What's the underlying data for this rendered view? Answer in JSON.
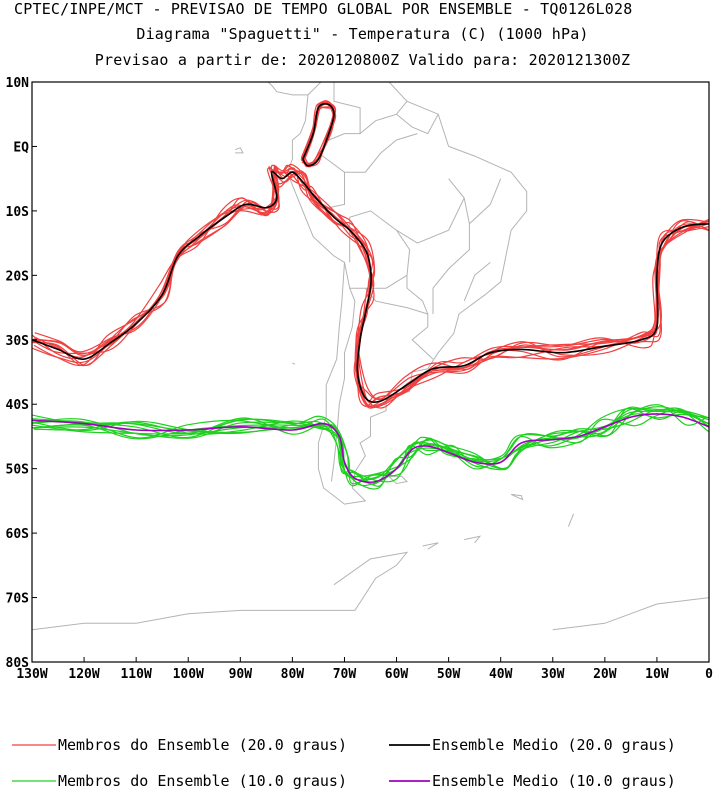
{
  "title": {
    "line1": "CPTEC/INPE/MCT - PREVISAO DE TEMPO GLOBAL POR ENSEMBLE - TQ0126L028",
    "line2": "Diagrama \"Spaguetti\" - Temperatura (C) (1000 hPa)",
    "line3": "Previsao a partir de: 2020120800Z  Valido para: 2020121300Z"
  },
  "axes": {
    "lat_labels": [
      "10N",
      "EQ",
      "10S",
      "20S",
      "30S",
      "40S",
      "50S",
      "60S",
      "70S",
      "80S"
    ],
    "lat_values": [
      10,
      0,
      -10,
      -20,
      -30,
      -40,
      -50,
      -60,
      -70,
      -80
    ],
    "lon_labels": [
      "130W",
      "120W",
      "110W",
      "100W",
      "90W",
      "80W",
      "70W",
      "60W",
      "50W",
      "40W",
      "30W",
      "20W",
      "10W",
      "0"
    ],
    "lon_values": [
      -130,
      -120,
      -110,
      -100,
      -90,
      -80,
      -70,
      -60,
      -50,
      -40,
      -30,
      -20,
      -10,
      0
    ],
    "lon_range": [
      -130,
      0
    ],
    "lat_range": [
      -80,
      10
    ]
  },
  "legend": [
    {
      "label": "Membros do Ensemble (20.0 graus)",
      "color": "#f04040"
    },
    {
      "label": "Ensemble Medio (20.0 graus)",
      "color": "#000000"
    },
    {
      "label": "Membros do Ensemble (10.0 graus)",
      "color": "#20d020"
    },
    {
      "label": "Ensemble Medio (10.0 graus)",
      "color": "#a000c0"
    }
  ],
  "contours": {
    "t20_mean": [
      [
        -130,
        -30
      ],
      [
        -125,
        -31.5
      ],
      [
        -120,
        -33
      ],
      [
        -115,
        -30.5
      ],
      [
        -110,
        -27.5
      ],
      [
        -105,
        -23
      ],
      [
        -102,
        -17
      ],
      [
        -98,
        -14
      ],
      [
        -93,
        -11
      ],
      [
        -89,
        -9
      ],
      [
        -85,
        -9.5
      ],
      [
        -83,
        -8
      ],
      [
        -84,
        -4
      ],
      [
        -82,
        -5
      ],
      [
        -80,
        -4
      ],
      [
        -78,
        -5.5
      ],
      [
        -76,
        -7.5
      ],
      [
        -72,
        -11
      ],
      [
        -69,
        -13
      ],
      [
        -66,
        -16
      ],
      [
        -65,
        -19
      ],
      [
        -65,
        -22
      ],
      [
        -66,
        -26
      ],
      [
        -67,
        -30
      ],
      [
        -67.5,
        -35
      ],
      [
        -66,
        -39
      ],
      [
        -63,
        -39.5
      ],
      [
        -58,
        -37
      ],
      [
        -53,
        -34.5
      ],
      [
        -47,
        -34
      ],
      [
        -42,
        -32
      ],
      [
        -36,
        -31.5
      ],
      [
        -28,
        -32
      ],
      [
        -20,
        -31
      ],
      [
        -13,
        -30
      ],
      [
        -10,
        -28
      ],
      [
        -10,
        -20
      ],
      [
        -9,
        -15
      ],
      [
        -5,
        -12.5
      ],
      [
        0,
        -12
      ]
    ],
    "t20_loop": [
      [
        -78,
        -2
      ],
      [
        -76,
        2
      ],
      [
        -75,
        6
      ],
      [
        -73,
        6.5
      ],
      [
        -72,
        5
      ],
      [
        -73,
        2
      ],
      [
        -75,
        -2
      ],
      [
        -77,
        -3
      ],
      [
        -78,
        -2
      ]
    ],
    "t10_mean": [
      [
        -130,
        -42.5
      ],
      [
        -120,
        -43
      ],
      [
        -110,
        -44
      ],
      [
        -100,
        -44
      ],
      [
        -90,
        -43.5
      ],
      [
        -80,
        -44
      ],
      [
        -74,
        -43
      ],
      [
        -71,
        -45
      ],
      [
        -70,
        -49
      ],
      [
        -68,
        -51.5
      ],
      [
        -64,
        -52
      ],
      [
        -60,
        -50
      ],
      [
        -57,
        -47
      ],
      [
        -54,
        -46.5
      ],
      [
        -50,
        -47.5
      ],
      [
        -45,
        -49
      ],
      [
        -40,
        -49
      ],
      [
        -36,
        -46
      ],
      [
        -30,
        -45.5
      ],
      [
        -25,
        -45
      ],
      [
        -20,
        -43.5
      ],
      [
        -15,
        -42
      ],
      [
        -10,
        -41.5
      ],
      [
        -5,
        -42
      ],
      [
        0,
        -43.5
      ]
    ]
  }
}
